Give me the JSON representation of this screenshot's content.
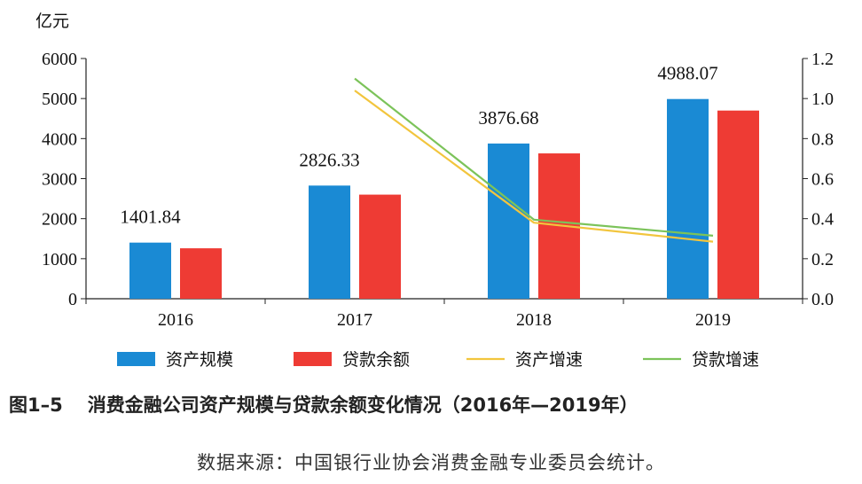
{
  "chart_data": {
    "type": "bar",
    "left_unit": "亿元",
    "categories": [
      "2016",
      "2017",
      "2018",
      "2019"
    ],
    "ylim_left": [
      0,
      6000
    ],
    "yticks_left": [
      "0",
      "1000",
      "2000",
      "3000",
      "4000",
      "5000",
      "6000"
    ],
    "ylim_right": [
      0,
      1.2
    ],
    "yticks_right": [
      "0.0",
      "0.2",
      "0.4",
      "0.6",
      "0.8",
      "1.0",
      "1.2"
    ],
    "bar_series": [
      {
        "name": "资产规模",
        "color": "#1a8ad4",
        "values": [
          1401.84,
          2826.33,
          3876.68,
          4988.07
        ],
        "value_labels": [
          "1401.84",
          "2826.33",
          "3876.68",
          "4988.07"
        ]
      },
      {
        "name": "贷款余额",
        "color": "#ee3b34",
        "values": [
          1260,
          2600,
          3630,
          4700
        ]
      }
    ],
    "line_series": [
      {
        "name": "资产增速",
        "color": "#f2c53d",
        "categories": [
          "2017",
          "2018",
          "2019"
        ],
        "values": [
          1.04,
          0.38,
          0.285
        ]
      },
      {
        "name": "贷款增速",
        "color": "#7cc35a",
        "categories": [
          "2017",
          "2018",
          "2019"
        ],
        "values": [
          1.1,
          0.395,
          0.315
        ]
      }
    ],
    "legend_position": "bottom",
    "grid": false
  },
  "caption": {
    "figure_number": "图1–5",
    "title": "消费金融公司资产规模与贷款余额变化情况（2016年—2019年）"
  },
  "source_note": "数据来源：中国银行业协会消费金融专业委员会统计。"
}
